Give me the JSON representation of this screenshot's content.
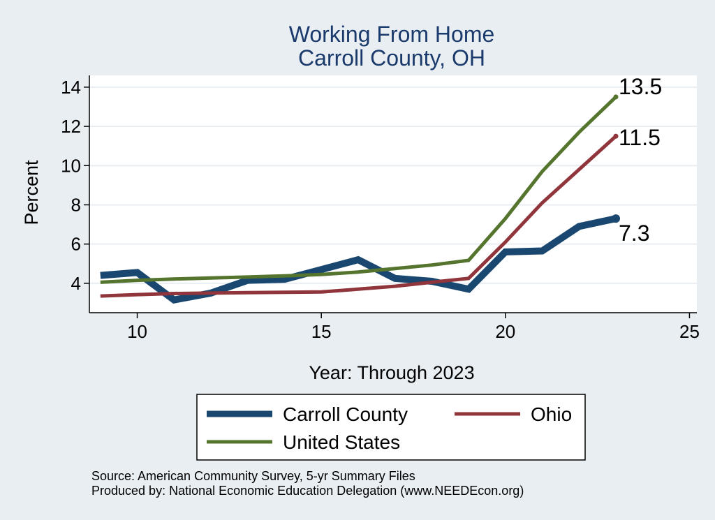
{
  "chart_data": {
    "type": "line",
    "title": "Working From Home",
    "subtitle": "Carroll County, OH",
    "xlabel": "Year: Through 2023",
    "ylabel": "Percent",
    "xlim": [
      8.7,
      25.2
    ],
    "ylim": [
      2.5,
      14.6
    ],
    "xticks": [
      10,
      15,
      20,
      25
    ],
    "yticks": [
      4,
      6,
      8,
      10,
      12,
      14
    ],
    "grid": true,
    "x": [
      9,
      10,
      11,
      12,
      13,
      14,
      15,
      16,
      17,
      18,
      19,
      20,
      21,
      22,
      23
    ],
    "series": [
      {
        "name": "Carroll County",
        "color": "#1a476f",
        "values": [
          4.4,
          4.55,
          3.15,
          3.5,
          4.15,
          4.2,
          4.7,
          5.2,
          4.25,
          4.1,
          3.7,
          5.6,
          5.65,
          6.9,
          7.3
        ],
        "end_label": "7.3"
      },
      {
        "name": "Ohio",
        "color": "#90353b",
        "values": [
          3.35,
          3.42,
          3.48,
          3.5,
          3.52,
          3.54,
          3.56,
          3.7,
          3.85,
          4.05,
          4.25,
          6.1,
          8.1,
          9.8,
          11.5
        ],
        "end_label": "11.5"
      },
      {
        "name": "United States",
        "color": "#55752f",
        "values": [
          4.05,
          4.15,
          4.22,
          4.27,
          4.32,
          4.38,
          4.45,
          4.57,
          4.75,
          4.93,
          5.17,
          7.3,
          9.7,
          11.7,
          13.5
        ],
        "end_label": "13.5"
      }
    ],
    "legend": {
      "placement": "bottom",
      "entries": [
        "Carroll County",
        "Ohio",
        "United States"
      ]
    },
    "notes": [
      "Source: American Community Survey, 5-yr Summary Files",
      "Produced by: National Economic Education Delegation (www.NEEDEcon.org)"
    ]
  }
}
